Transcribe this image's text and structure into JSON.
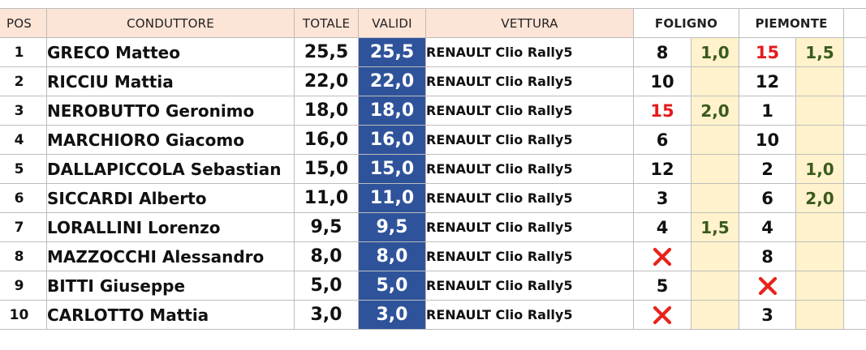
{
  "header": {
    "pos": "POS",
    "driver": "CONDUTTORE",
    "total": "TOTALE",
    "valid": "VALIDI",
    "car": "VETTURA",
    "stage1": "FOLIGNO",
    "stage2": "PIEMONTE"
  },
  "colors": {
    "header_bg": "#fce4d6",
    "valid_bg": "#2f539b",
    "bonus_bg": "#fff2cc",
    "red_place": "#e41a1c",
    "bonus_text": "#3a5a1e"
  },
  "rows": [
    {
      "pos": "1",
      "driver": "GRECO Matteo",
      "total": "25,5",
      "valid": "25,5",
      "car": "RENAULT Clio Rally5",
      "s1_place": "8",
      "s1_bonus": "1,0",
      "s2_place": "15",
      "s2_bonus": "1,5"
    },
    {
      "pos": "2",
      "driver": "RICCIU Mattia",
      "total": "22,0",
      "valid": "22,0",
      "car": "RENAULT Clio Rally5",
      "s1_place": "10",
      "s1_bonus": "",
      "s2_place": "12",
      "s2_bonus": ""
    },
    {
      "pos": "3",
      "driver": "NEROBUTTO Geronimo",
      "total": "18,0",
      "valid": "18,0",
      "car": "RENAULT Clio Rally5",
      "s1_place": "15",
      "s1_bonus": "2,0",
      "s2_place": "1",
      "s2_bonus": ""
    },
    {
      "pos": "4",
      "driver": "MARCHIORO Giacomo",
      "total": "16,0",
      "valid": "16,0",
      "car": "RENAULT Clio Rally5",
      "s1_place": "6",
      "s1_bonus": "",
      "s2_place": "10",
      "s2_bonus": ""
    },
    {
      "pos": "5",
      "driver": "DALLAPICCOLA Sebastian",
      "total": "15,0",
      "valid": "15,0",
      "car": "RENAULT Clio Rally5",
      "s1_place": "12",
      "s1_bonus": "",
      "s2_place": "2",
      "s2_bonus": "1,0"
    },
    {
      "pos": "6",
      "driver": "SICCARDI Alberto",
      "total": "11,0",
      "valid": "11,0",
      "car": "RENAULT Clio Rally5",
      "s1_place": "3",
      "s1_bonus": "",
      "s2_place": "6",
      "s2_bonus": "2,0"
    },
    {
      "pos": "7",
      "driver": "LORALLINI Lorenzo",
      "total": "9,5",
      "valid": "9,5",
      "car": "RENAULT Clio Rally5",
      "s1_place": "4",
      "s1_bonus": "1,5",
      "s2_place": "4",
      "s2_bonus": ""
    },
    {
      "pos": "8",
      "driver": "MAZZOCCHI Alessandro",
      "total": "8,0",
      "valid": "8,0",
      "car": "RENAULT Clio Rally5",
      "s1_place": "",
      "s1_bonus": "",
      "s2_place": "8",
      "s2_bonus": ""
    },
    {
      "pos": "9",
      "driver": "BITTI Giuseppe",
      "total": "5,0",
      "valid": "5,0",
      "car": "RENAULT Clio Rally5",
      "s1_place": "5",
      "s1_bonus": "",
      "s2_place": "",
      "s2_bonus": ""
    },
    {
      "pos": "10",
      "driver": "CARLOTTO Mattia",
      "total": "3,0",
      "valid": "3,0",
      "car": "RENAULT Clio Rally5",
      "s1_place": "",
      "s1_bonus": "",
      "s2_place": "3",
      "s2_bonus": ""
    }
  ],
  "marks": {
    "red_places": [
      [
        0,
        "s2"
      ],
      [
        2,
        "s1"
      ]
    ],
    "crosses": [
      [
        7,
        "s1"
      ],
      [
        8,
        "s2"
      ],
      [
        9,
        "s1"
      ]
    ],
    "cross_icon": "red-x-icon"
  }
}
